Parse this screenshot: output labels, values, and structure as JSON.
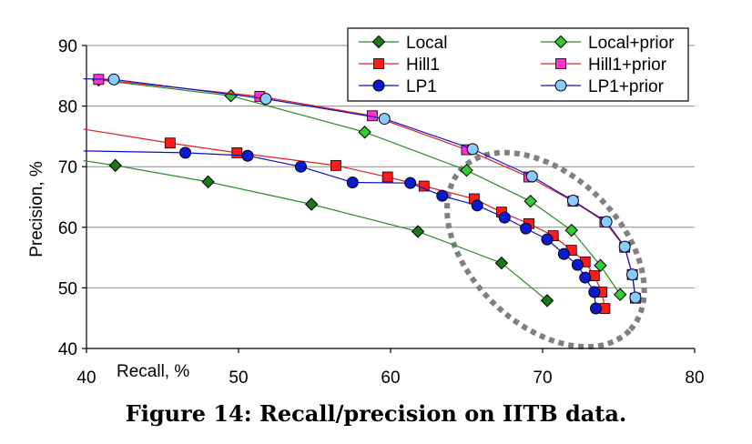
{
  "caption": "Figure 14: Recall/precision on IITB data.",
  "chart_data": {
    "type": "line",
    "title": "",
    "xlabel": "Recall, %",
    "ylabel": "Precision, %",
    "xlim": [
      40,
      80
    ],
    "ylim": [
      40,
      90
    ],
    "xticks": [
      40,
      50,
      60,
      70,
      80
    ],
    "yticks": [
      40,
      50,
      60,
      70,
      80,
      90
    ],
    "grid": "horizontal",
    "legend_position": "top-right",
    "annotations": [
      {
        "type": "dotted-ellipse",
        "color": "#808080",
        "description": "highlight region around high-recall points"
      }
    ],
    "series": [
      {
        "name": "Local",
        "marker": "diamond",
        "color": "#1a7a1a",
        "line_color": "#2a8a2a",
        "points": [
          [
            39.8,
            71.0
          ],
          [
            41.9,
            70.2
          ],
          [
            48.0,
            67.5
          ],
          [
            54.8,
            63.8
          ],
          [
            61.8,
            59.3
          ],
          [
            67.3,
            54.1
          ],
          [
            70.3,
            47.9
          ]
        ]
      },
      {
        "name": "Local+prior",
        "marker": "diamond",
        "color": "#33cc33",
        "line_color": "#2a8a2a",
        "points": [
          [
            40.8,
            84.3
          ],
          [
            49.5,
            81.7
          ],
          [
            58.3,
            75.7
          ],
          [
            65.0,
            69.4
          ],
          [
            69.2,
            64.3
          ],
          [
            71.9,
            59.5
          ],
          [
            73.8,
            53.7
          ],
          [
            75.1,
            48.9
          ]
        ]
      },
      {
        "name": "Hill1",
        "marker": "square",
        "color": "#ff1a1a",
        "line_color": "#e02020",
        "points": [
          [
            39.8,
            76.2
          ],
          [
            45.5,
            73.9
          ],
          [
            49.9,
            72.3
          ],
          [
            56.4,
            70.2
          ],
          [
            59.8,
            68.3
          ],
          [
            62.2,
            66.8
          ],
          [
            65.5,
            64.7
          ],
          [
            67.3,
            62.5
          ],
          [
            69.1,
            60.6
          ],
          [
            70.7,
            58.6
          ],
          [
            71.9,
            56.2
          ],
          [
            72.8,
            54.3
          ],
          [
            73.4,
            52.0
          ],
          [
            73.9,
            49.3
          ],
          [
            74.1,
            46.6
          ]
        ]
      },
      {
        "name": "Hill1+prior",
        "marker": "square",
        "color": "#ff33cc",
        "line_color": "#e02020",
        "points": [
          [
            40.8,
            84.4
          ],
          [
            51.4,
            81.6
          ],
          [
            58.8,
            78.4
          ],
          [
            65.0,
            72.8
          ],
          [
            69.1,
            68.3
          ],
          [
            72.0,
            64.3
          ],
          [
            74.1,
            60.9
          ],
          [
            75.4,
            56.7
          ],
          [
            75.9,
            52.2
          ],
          [
            76.1,
            48.3
          ]
        ]
      },
      {
        "name": "LP1",
        "marker": "circle",
        "color": "#0a1ad0",
        "line_color": "#1010c0",
        "points": [
          [
            39.8,
            72.6
          ],
          [
            46.5,
            72.3
          ],
          [
            50.6,
            71.8
          ],
          [
            54.1,
            70.0
          ],
          [
            57.5,
            67.4
          ],
          [
            61.3,
            67.3
          ],
          [
            63.4,
            65.2
          ],
          [
            65.7,
            63.6
          ],
          [
            67.5,
            61.6
          ],
          [
            68.9,
            59.8
          ],
          [
            70.3,
            58.0
          ],
          [
            71.4,
            55.6
          ],
          [
            72.3,
            53.8
          ],
          [
            72.8,
            51.7
          ],
          [
            73.4,
            49.3
          ],
          [
            73.5,
            46.6
          ]
        ]
      },
      {
        "name": "LP1+prior",
        "marker": "circle",
        "color": "#88ccff",
        "line_color": "#1010c0",
        "points": [
          [
            39.8,
            84.5
          ],
          [
            41.8,
            84.4
          ],
          [
            51.8,
            81.2
          ],
          [
            59.6,
            77.9
          ],
          [
            65.4,
            72.9
          ],
          [
            69.3,
            68.4
          ],
          [
            72.0,
            64.4
          ],
          [
            74.2,
            60.9
          ],
          [
            75.4,
            56.8
          ],
          [
            75.9,
            52.2
          ],
          [
            76.1,
            48.4
          ]
        ]
      }
    ]
  }
}
